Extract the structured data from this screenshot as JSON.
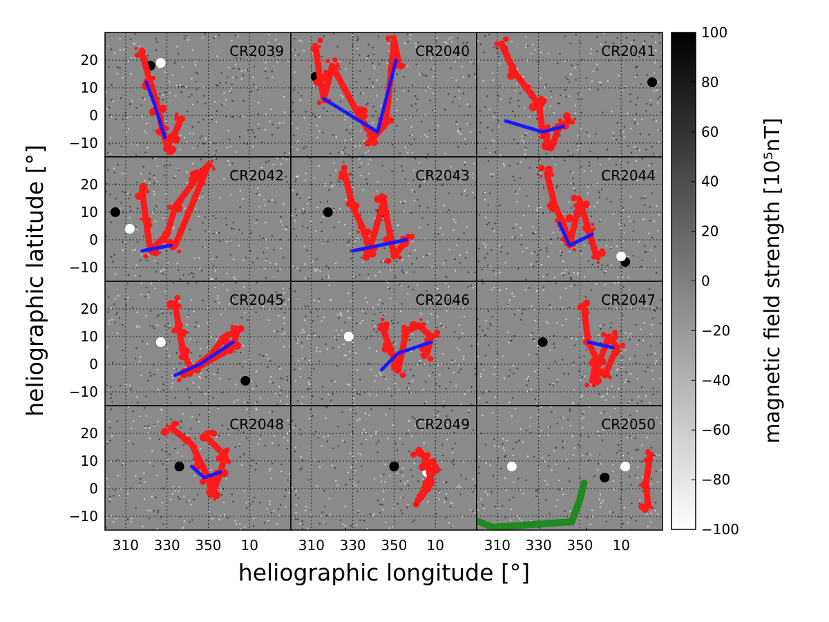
{
  "chart_data": {
    "type": "heatmap",
    "description_colors": {
      "background_gray": "#8a8a8a",
      "feature_red": "#ff1a1a",
      "feature_blue": "#1a1aff",
      "feature_green": "#1f8a1f"
    },
    "xlabel": "heliographic longitude",
    "xlabel_unit": "[°]",
    "ylabel": "heliographic latitude",
    "ylabel_unit": "[°]",
    "x_ticks": [
      "310",
      "330",
      "350",
      "10"
    ],
    "y_ticks": [
      "20",
      "10",
      "0",
      "−10"
    ],
    "xlim": [
      300,
      390
    ],
    "ylim": [
      -15,
      30
    ],
    "grid": true,
    "panels": [
      {
        "label": "CR2039"
      },
      {
        "label": "CR2040"
      },
      {
        "label": "CR2041"
      },
      {
        "label": "CR2042"
      },
      {
        "label": "CR2043"
      },
      {
        "label": "CR2044"
      },
      {
        "label": "CR2045"
      },
      {
        "label": "CR2046"
      },
      {
        "label": "CR2047"
      },
      {
        "label": "CR2048"
      },
      {
        "label": "CR2049"
      },
      {
        "label": "CR2050"
      }
    ],
    "colorbar": {
      "label": "magnetic field strength",
      "unit": "[10⁵nT]",
      "range": [
        -100,
        100
      ],
      "ticks": [
        "100",
        "80",
        "60",
        "40",
        "20",
        "0",
        "−20",
        "−40",
        "−60",
        "−80",
        "−100"
      ],
      "colormap": "gray_r"
    }
  }
}
